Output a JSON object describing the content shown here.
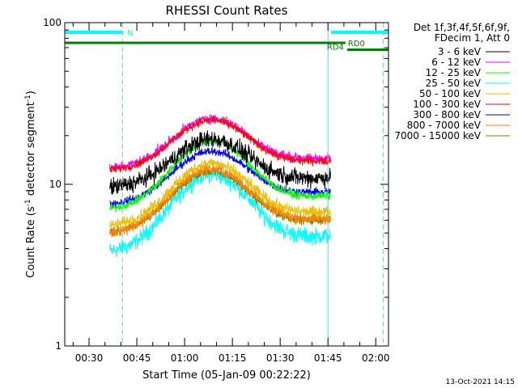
{
  "chart_data": {
    "type": "line",
    "title": "RHESSI Count Rates",
    "xlabel": "Start Time (05-Jan-09 00:22:22)",
    "ylabel_main": "Count Rate (s",
    "ylabel_sup1": "-1",
    "ylabel_mid": " detector segment",
    "ylabel_sup2": "-1",
    "ylabel_end": ")",
    "xlim_minutes": [
      22.37,
      124.0
    ],
    "ylim": [
      1,
      100
    ],
    "yscale": "log",
    "x_ticks": [
      {
        "label": "00:30",
        "minutes": 30
      },
      {
        "label": "00:45",
        "minutes": 45
      },
      {
        "label": "01:00",
        "minutes": 60
      },
      {
        "label": "01:15",
        "minutes": 75
      },
      {
        "label": "01:30",
        "minutes": 90
      },
      {
        "label": "01:45",
        "minutes": 105
      },
      {
        "label": "02:00",
        "minutes": 120
      }
    ],
    "y_ticks": [
      {
        "label": "1",
        "value": 1
      },
      {
        "label": "10",
        "value": 10
      },
      {
        "label": "100",
        "value": 100
      }
    ],
    "legend_header": [
      "Det 1f,3f,4f,5f,6f,9f,",
      "FDecim 1, Att 0"
    ],
    "data_start_minutes": 36.5,
    "data_end_minutes": 105.8,
    "peak_minutes": 68.5,
    "series": [
      {
        "name": "3 - 6 keV",
        "color": "#000000",
        "start": 9.5,
        "end": 11.0,
        "peak": 19.0,
        "noise": 0.11
      },
      {
        "name": "6 - 12 keV",
        "color": "#ff00ff",
        "start": 12.5,
        "end": 14.5,
        "peak": 25.5,
        "noise": 0.06
      },
      {
        "name": "12 - 25 keV",
        "color": "#00ff00",
        "start": 7.0,
        "end": 8.5,
        "peak": 18.5,
        "noise": 0.05
      },
      {
        "name": "25 - 50 keV",
        "color": "#00ffff",
        "start": 3.8,
        "end": 4.8,
        "peak": 11.5,
        "noise": 0.1
      },
      {
        "name": "50 - 100 keV",
        "color": "#e8c000",
        "start": 5.5,
        "end": 6.8,
        "peak": 13.5,
        "noise": 0.07
      },
      {
        "name": "100 - 300 keV",
        "color": "#ff0000",
        "start": 12.2,
        "end": 14.0,
        "peak": 25.0,
        "noise": 0.05
      },
      {
        "name": "300 - 800 keV",
        "color": "#0000ff",
        "start": 7.5,
        "end": 9.0,
        "peak": 16.0,
        "noise": 0.05
      },
      {
        "name": "800 - 7000 keV",
        "color": "#ff8000",
        "start": 5.0,
        "end": 6.2,
        "peak": 12.5,
        "noise": 0.07
      },
      {
        "name": "7000 - 15000 keV",
        "color": "#808000",
        "start": 5.0,
        "end": 6.0,
        "peak": 12.0,
        "noise": 0.05
      }
    ],
    "night_intervals": [
      {
        "label": "N",
        "start": 22.37,
        "end": 40.5
      }
    ],
    "night_after": {
      "start": 106.0,
      "end": 124.0
    },
    "saa_bars": [
      {
        "label": "RD0",
        "start": 22.37,
        "end": 110.5,
        "value": 75
      },
      {
        "label": "RD4",
        "start": 111.0,
        "end": 124.0,
        "value": 68
      }
    ],
    "vertical_markers": [
      {
        "minutes": 40.5,
        "style": "dashed",
        "color": "#00ffff"
      },
      {
        "minutes": 105.0,
        "style": "solid",
        "color": "#00ffff"
      },
      {
        "minutes": 122.3,
        "style": "dashed",
        "color": "#00ffff"
      }
    ]
  },
  "footer_timestamp": "13-Oct-2021 14:15"
}
